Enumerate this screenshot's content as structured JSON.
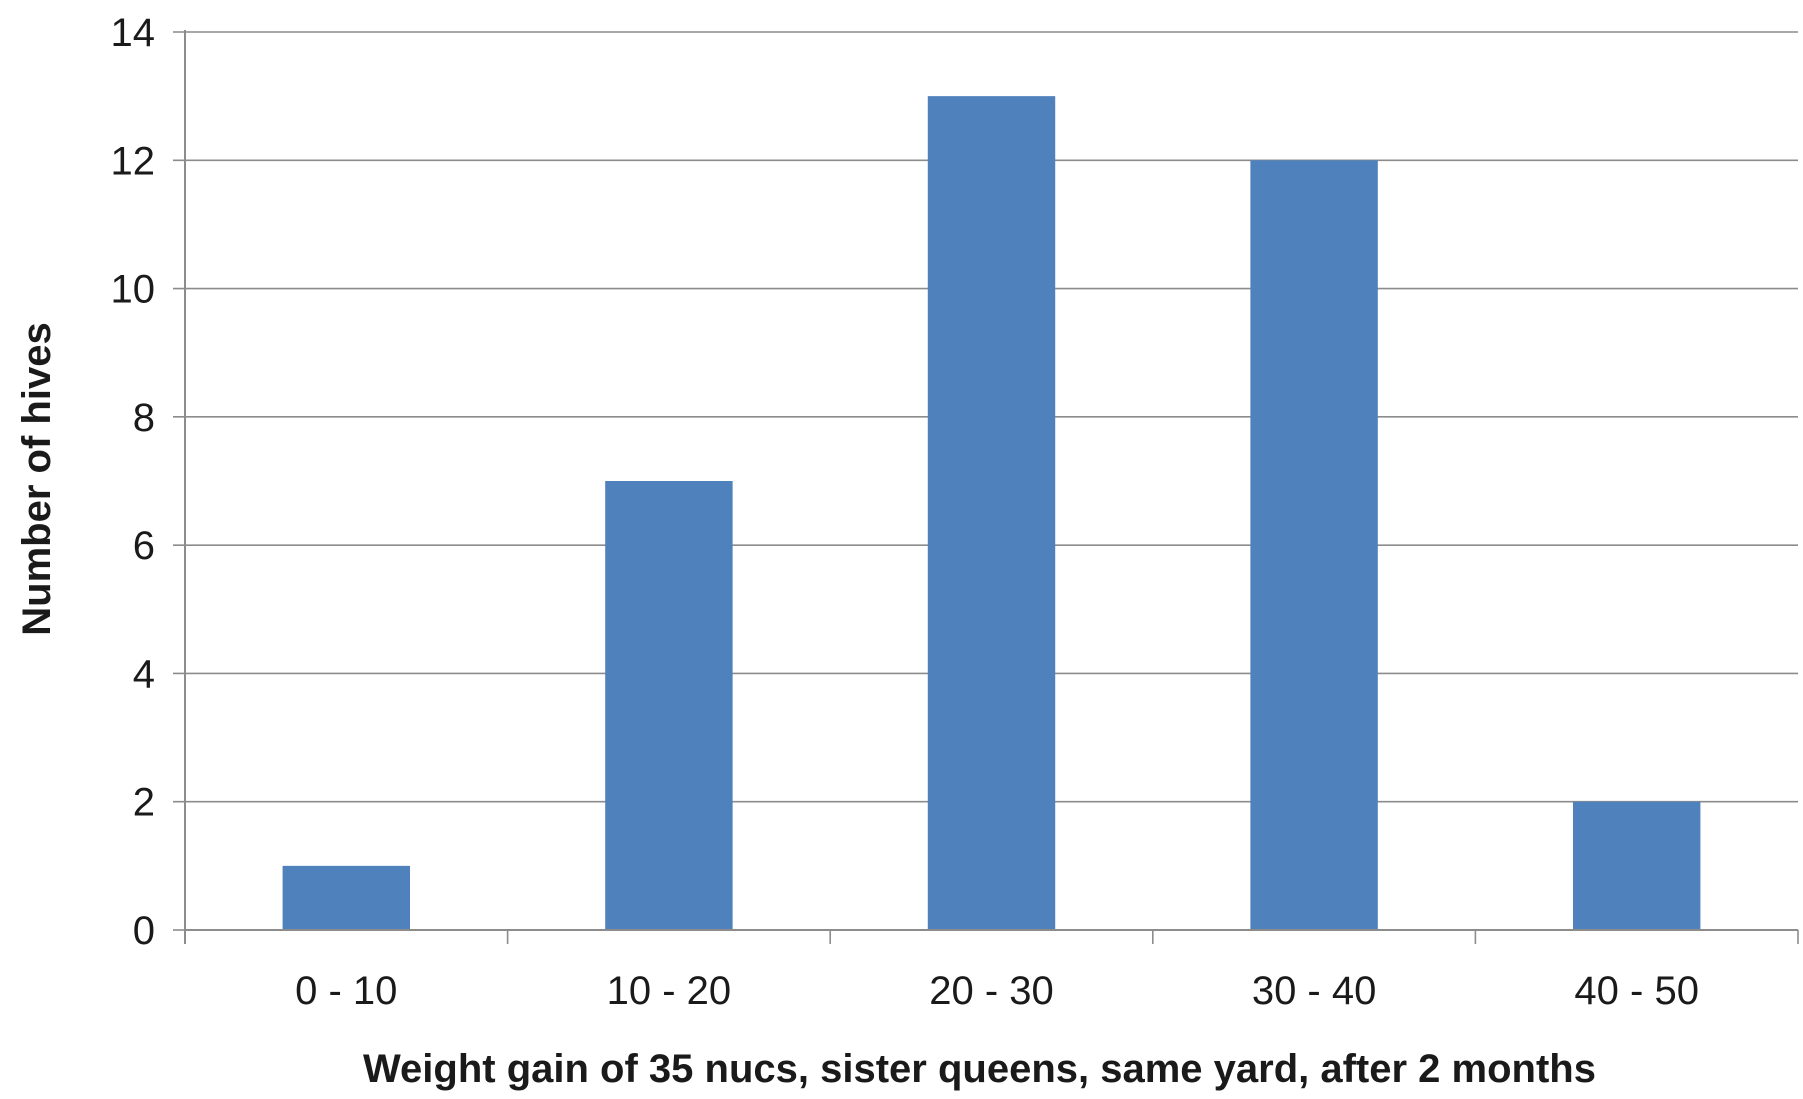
{
  "chart_data": {
    "type": "bar",
    "title": "",
    "xlabel": "Weight gain of 35 nucs, sister queens, same yard, after 2 months",
    "ylabel": "Number of hives",
    "categories": [
      "0 - 10",
      "10 - 20",
      "20 - 30",
      "30 - 40",
      "40 - 50"
    ],
    "values": [
      1,
      7,
      13,
      12,
      2
    ],
    "ylim": [
      0,
      14
    ],
    "yticks": [
      "0",
      "2",
      "4",
      "6",
      "8",
      "10",
      "12",
      "14"
    ],
    "grid": true,
    "legend": "none",
    "bar_color": "#4f81bd",
    "grid_color": "#8c8c8c"
  }
}
